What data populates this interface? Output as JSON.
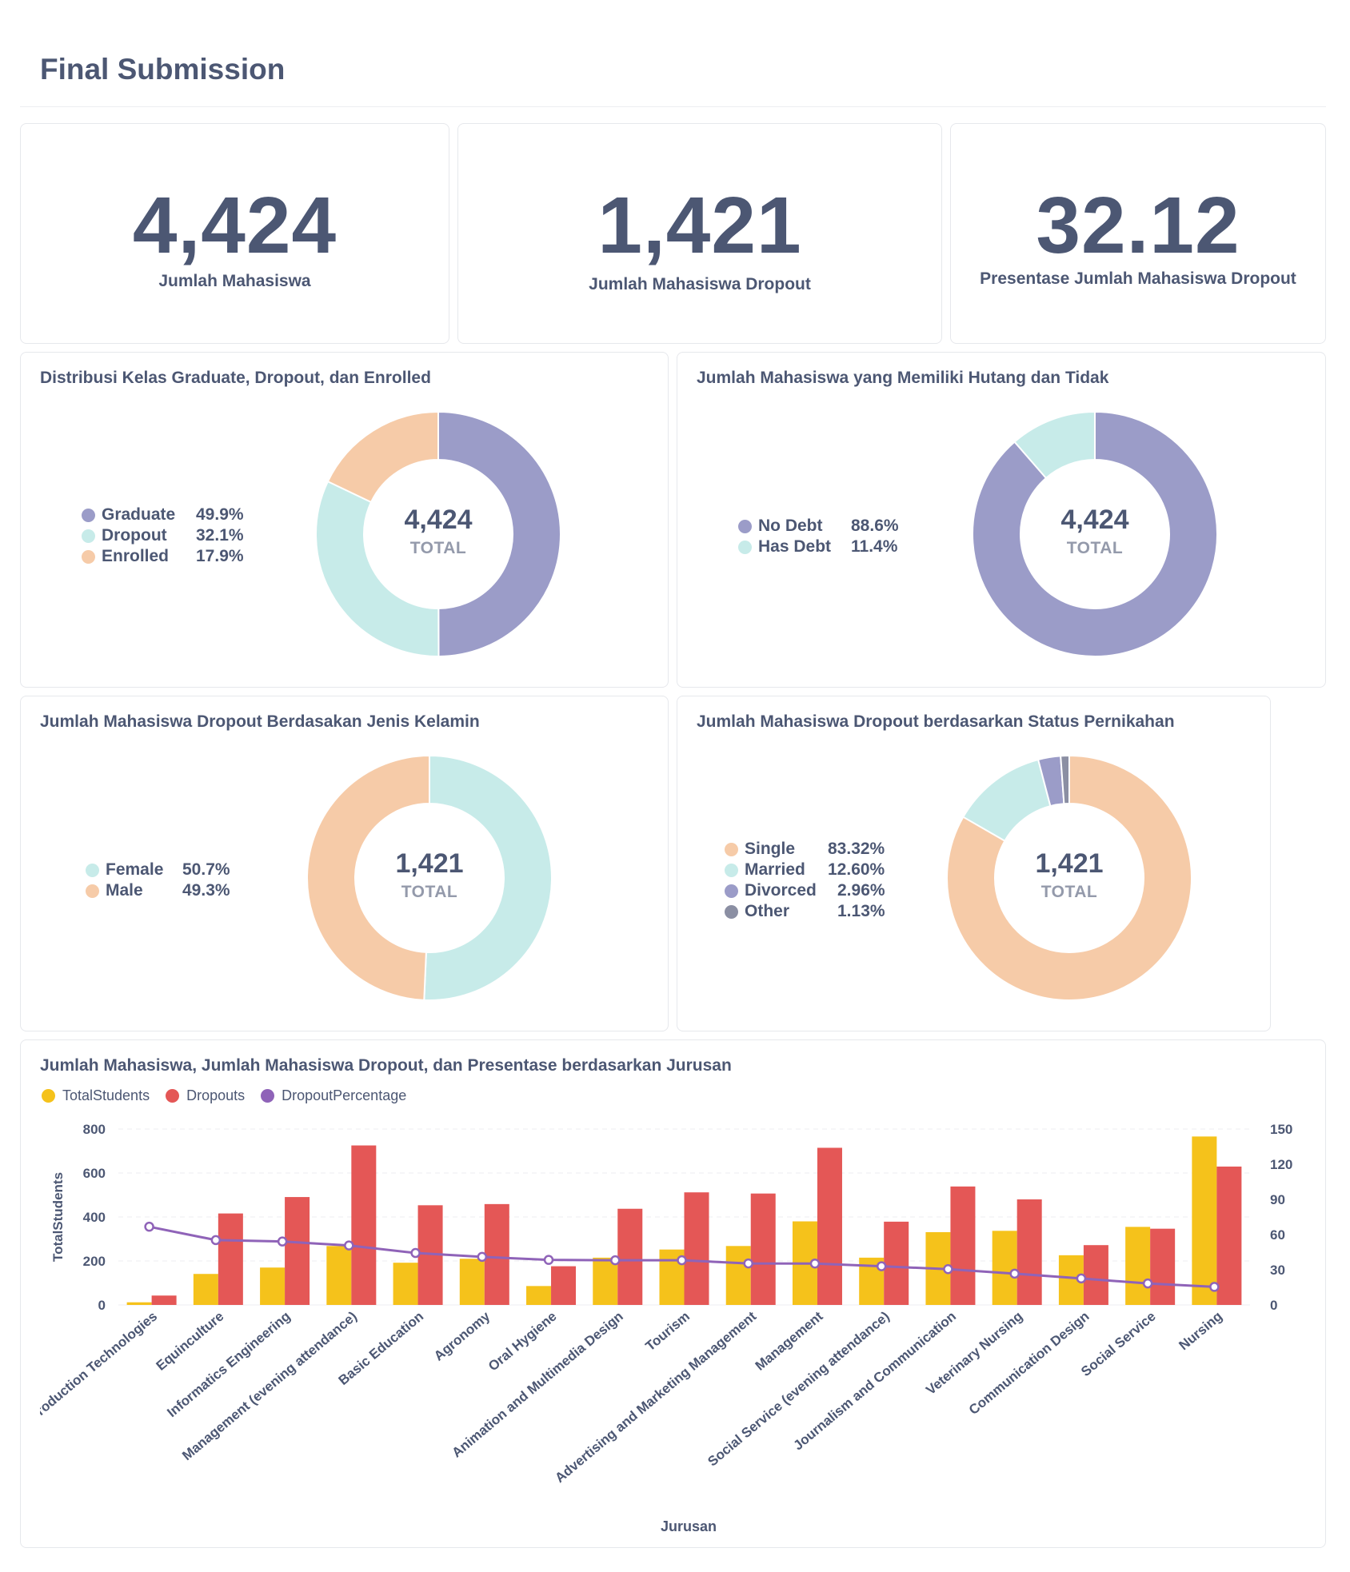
{
  "page": {
    "title": "Final Submission"
  },
  "kpis": [
    {
      "value": "4,424",
      "label": "Jumlah Mahasiswa"
    },
    {
      "value": "1,421",
      "label": "Jumlah Mahasiswa Dropout"
    },
    {
      "value": "32.12",
      "label": "Presentase Jumlah Mahasiswa Dropout"
    }
  ],
  "colors": {
    "purple": "#9b9cc8",
    "teal": "#c7ebe9",
    "peach": "#f6cba8",
    "gray": "#8b8fa3",
    "yellow": "#f5c21b",
    "red": "#e45756",
    "line": "#8f63b8"
  },
  "chart_data": [
    {
      "type": "pie",
      "title": "Distribusi Kelas Graduate, Dropout, dan Enrolled",
      "total": "4,424",
      "total_label": "TOTAL",
      "labels": [
        "Graduate",
        "Dropout",
        "Enrolled"
      ],
      "values": [
        49.9,
        32.1,
        17.9
      ],
      "percent_labels": [
        "49.9%",
        "32.1%",
        "17.9%"
      ],
      "colors": [
        "#9b9cc8",
        "#c7ebe9",
        "#f6cba8"
      ]
    },
    {
      "type": "pie",
      "title": "Jumlah Mahasiswa yang Memiliki Hutang dan Tidak",
      "total": "4,424",
      "total_label": "TOTAL",
      "labels": [
        "No Debt",
        "Has Debt"
      ],
      "values": [
        88.6,
        11.4
      ],
      "percent_labels": [
        "88.6%",
        "11.4%"
      ],
      "colors": [
        "#9b9cc8",
        "#c7ebe9"
      ]
    },
    {
      "type": "pie",
      "title": "Jumlah Mahasiswa Dropout Berdasakan Jenis Kelamin",
      "total": "1,421",
      "total_label": "TOTAL",
      "labels": [
        "Female",
        "Male"
      ],
      "values": [
        50.7,
        49.3
      ],
      "percent_labels": [
        "50.7%",
        "49.3%"
      ],
      "colors": [
        "#c7ebe9",
        "#f6cba8"
      ]
    },
    {
      "type": "pie",
      "title": "Jumlah Mahasiswa Dropout berdasarkan Status Pernikahan",
      "total": "1,421",
      "total_label": "TOTAL",
      "labels": [
        "Single",
        "Married",
        "Divorced",
        "Other"
      ],
      "values": [
        83.32,
        12.6,
        2.96,
        1.13
      ],
      "percent_labels": [
        "83.32%",
        "12.60%",
        "2.96%",
        "1.13%"
      ],
      "colors": [
        "#f6cba8",
        "#c7ebe9",
        "#9b9cc8",
        "#8b8fa3"
      ]
    },
    {
      "type": "bar",
      "title": "Jumlah Mahasiswa, Jumlah Mahasiswa Dropout, dan Presentase berdasarkan Jurusan",
      "xlabel": "Jurusan",
      "ylabel": "TotalStudents",
      "ylim": [
        0,
        800
      ],
      "y_ticks": [
        "800",
        "600",
        "400",
        "200",
        "0"
      ],
      "y2lim": [
        0,
        150
      ],
      "y2_ticks": [
        "150",
        "120",
        "90",
        "60",
        "30",
        "0"
      ],
      "categories": [
        "Biofuel Production Technologies",
        "Equinculture",
        "Informatics Engineering",
        "Management (evening attendance)",
        "Basic Education",
        "Agronomy",
        "Oral Hygiene",
        "Animation and Multimedia Design",
        "Tourism",
        "Advertising and Marketing Management",
        "Management",
        "Social Service (evening attendance)",
        "Journalism and Communication",
        "Veterinary Nursing",
        "Communication Design",
        "Social Service",
        "Nursing"
      ],
      "series": [
        {
          "name": "TotalStudents",
          "type": "bar",
          "axis": "left",
          "color": "#f5c21b",
          "values": [
            12,
            141,
            170,
            268,
            192,
            210,
            86,
            215,
            252,
            268,
            380,
            215,
            331,
            337,
            226,
            355,
            766
          ]
        },
        {
          "name": "Dropouts",
          "type": "bar",
          "axis": "right",
          "color": "#e45756",
          "values": [
            8,
            78,
            92,
            136,
            85,
            86,
            33,
            82,
            96,
            95,
            134,
            71,
            101,
            90,
            51,
            65,
            118
          ]
        },
        {
          "name": "DropoutPercentage",
          "type": "line",
          "axis": "right",
          "color": "#8f63b8",
          "values": [
            66.7,
            55.3,
            54.1,
            50.7,
            44.3,
            41.0,
            38.4,
            38.1,
            38.1,
            35.4,
            35.3,
            33.0,
            30.5,
            26.7,
            22.6,
            18.3,
            15.4
          ]
        }
      ]
    }
  ]
}
